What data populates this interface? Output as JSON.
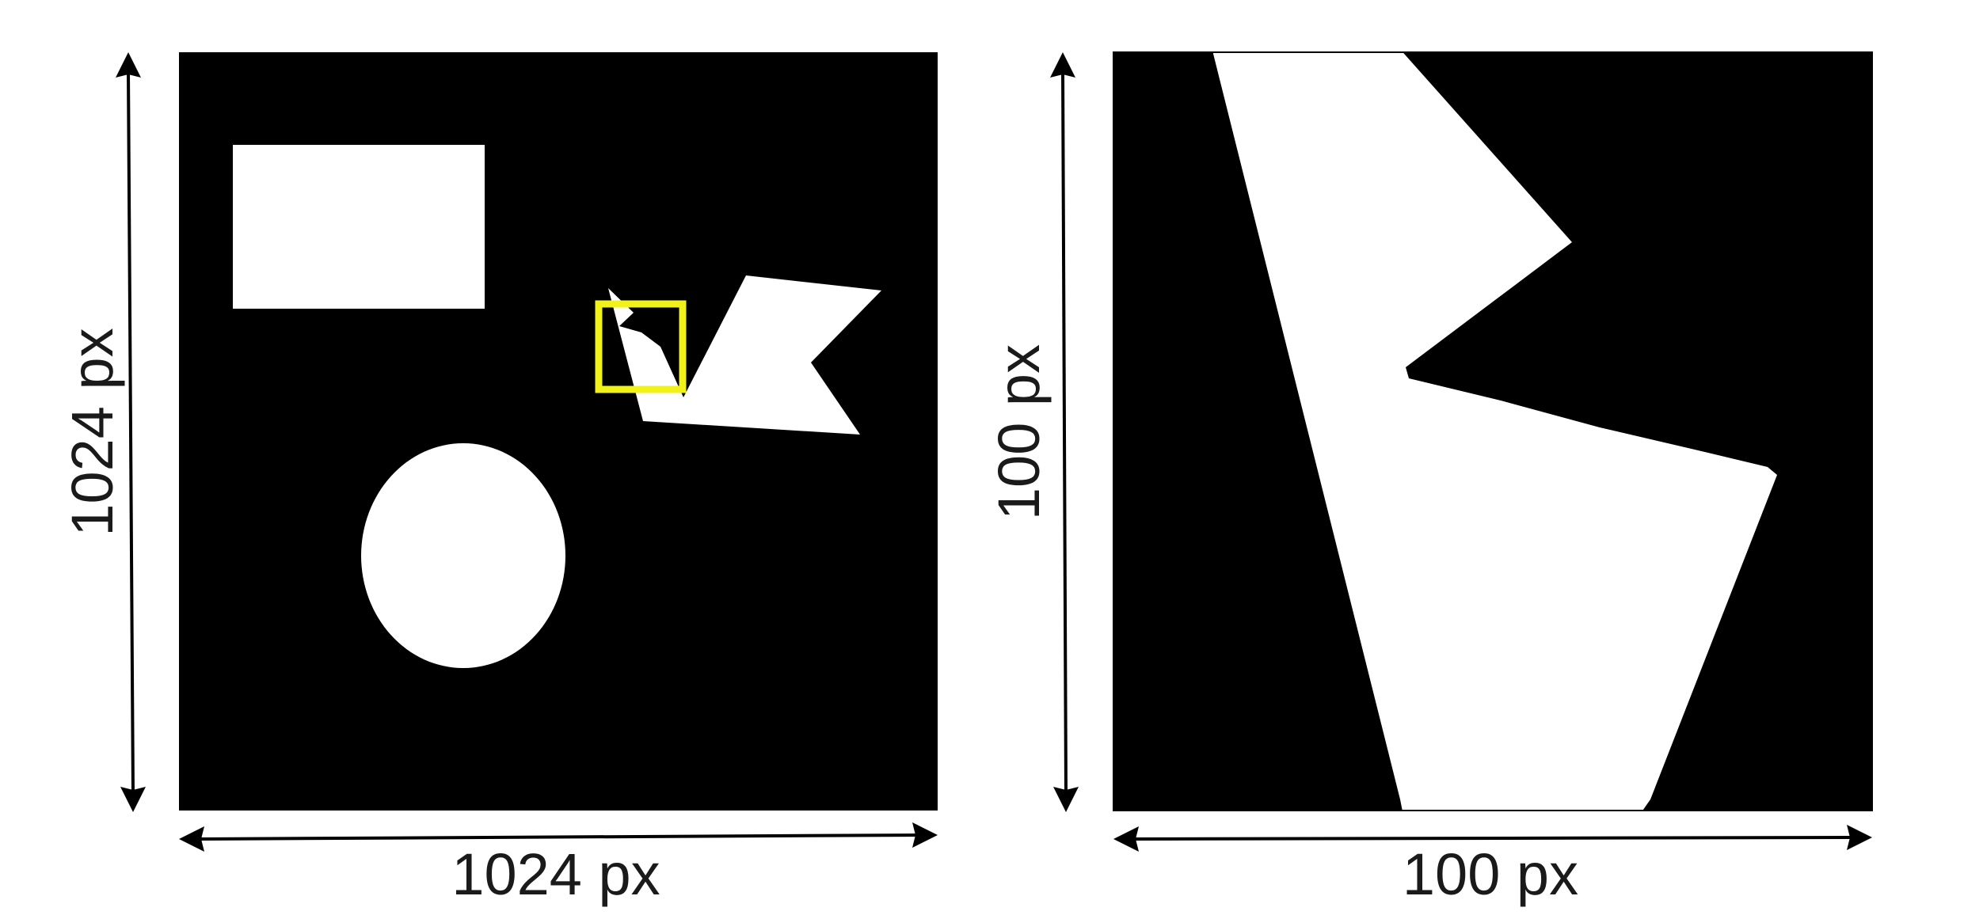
{
  "left_panel": {
    "width_label": "1024 px",
    "height_label": "1024 px"
  },
  "right_panel": {
    "width_label": "100 px",
    "height_label": "100 px"
  },
  "colors": {
    "background": "#000000",
    "shape": "#ffffff",
    "highlight": "#f0f21a",
    "arrow": "#000000",
    "text": "#1a1a1a"
  }
}
